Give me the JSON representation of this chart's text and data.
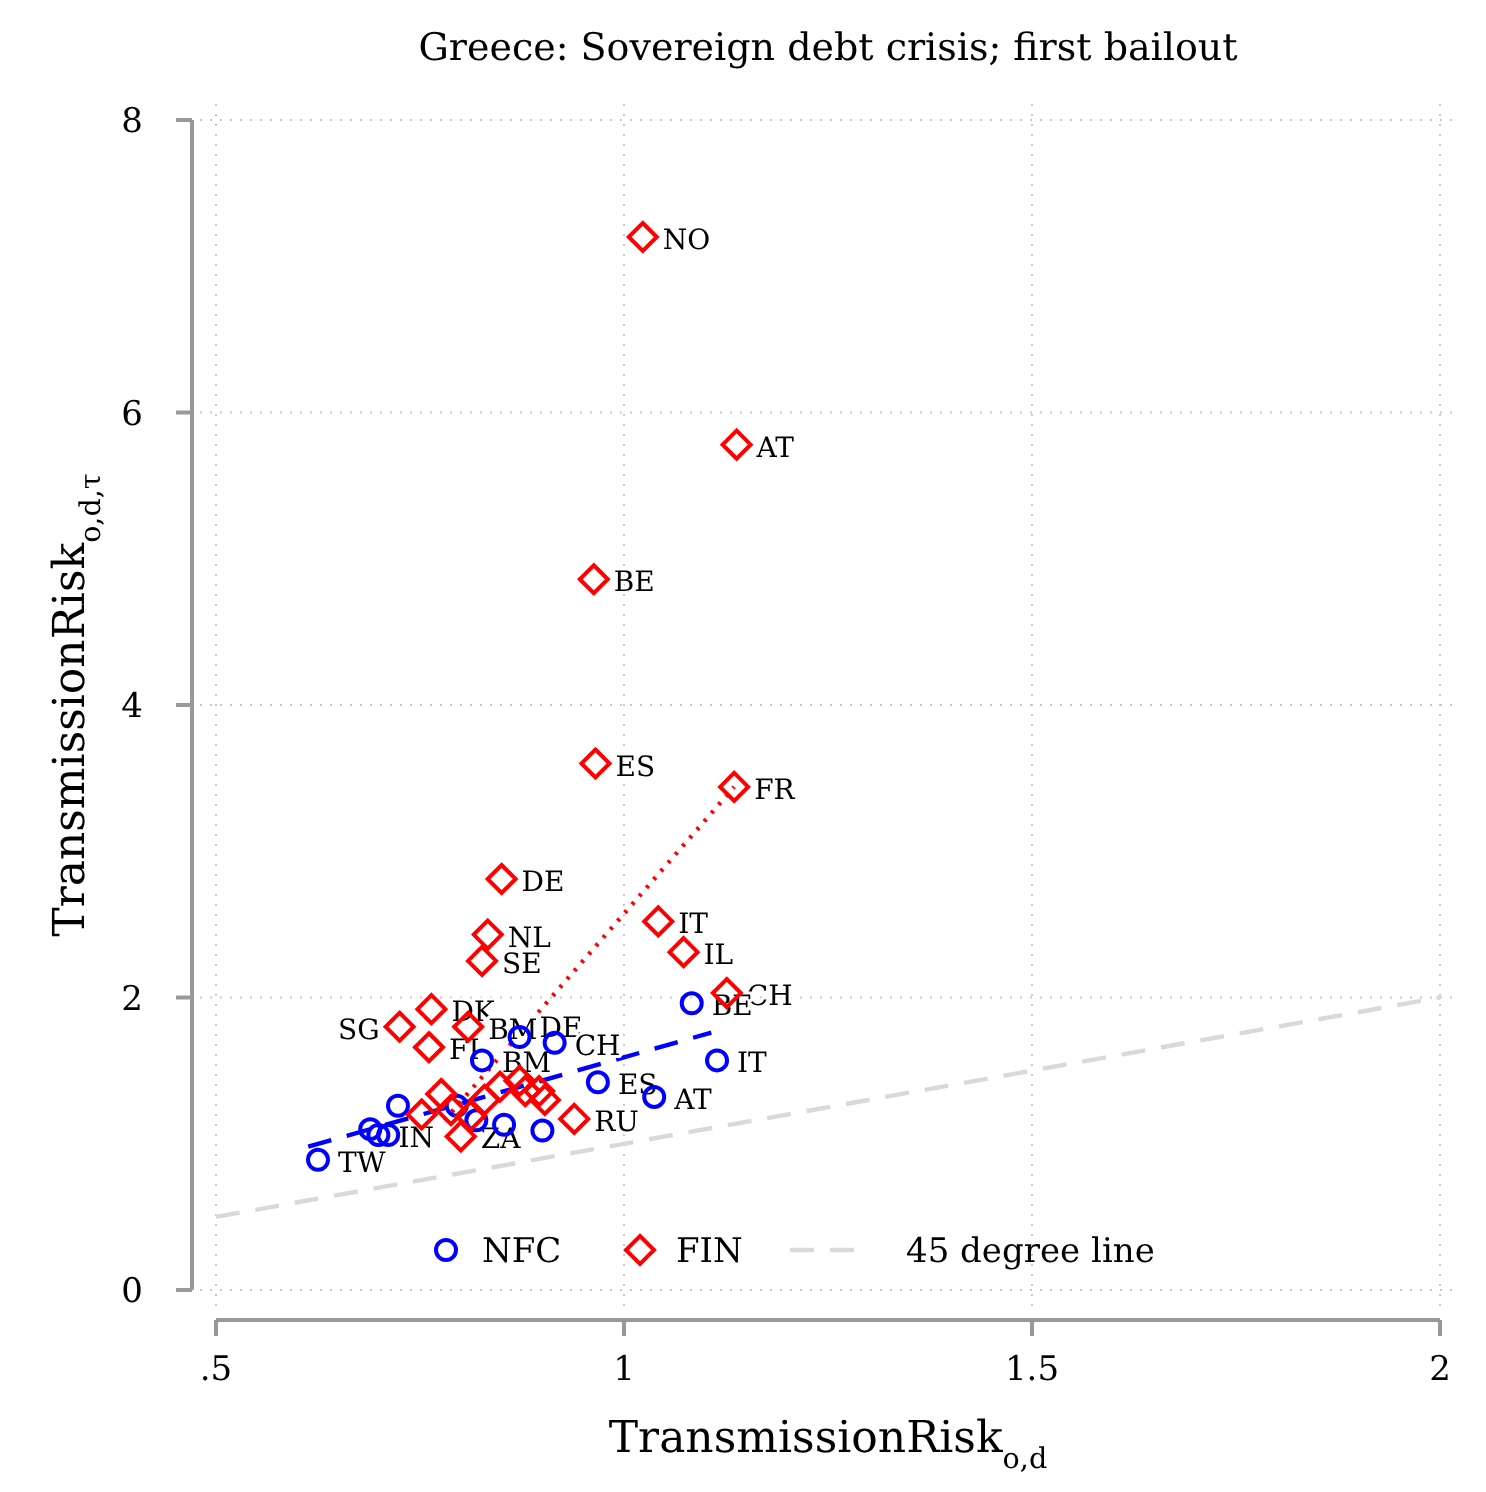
{
  "chart_data": {
    "type": "scatter",
    "title": "Greece: Sovereign debt crisis; first bailout",
    "xlabel": "TransmissionRisk$_{o,d}$",
    "ylabel": "TransmissionRisk$_{o,d,τ}$",
    "xlim": [
      0.5,
      2
    ],
    "ylim": [
      0,
      8
    ],
    "xticks": [
      {
        "value": 0.5,
        "label": ".5"
      },
      1,
      1.5,
      2
    ],
    "yticks": [
      0,
      2,
      4,
      6,
      8
    ],
    "grid": true,
    "legend": "bottom",
    "series": [
      {
        "name": "NFC",
        "marker": "circle",
        "color": "#0000ff",
        "x": [
          0.625,
          1.083,
          1.114,
          1.037,
          0.968,
          0.872,
          0.915,
          0.826,
          0.723,
          0.689,
          0.699,
          0.711,
          0.795,
          0.819,
          0.853,
          0.9
        ],
        "values": [
          0.89,
          1.96,
          1.57,
          1.32,
          1.42,
          1.73,
          1.69,
          1.57,
          1.26,
          1.1,
          1.06,
          1.06,
          1.26,
          1.16,
          1.13,
          1.09
        ]
      },
      {
        "name": "FIN",
        "marker": "diamond",
        "color": "#ff0000",
        "x": [
          1.023,
          1.138,
          0.963,
          0.965,
          1.135,
          0.85,
          1.042,
          0.833,
          1.073,
          0.826,
          1.126,
          0.764,
          0.725,
          0.809,
          0.761,
          0.752,
          0.776,
          0.788,
          0.8,
          0.848,
          0.872,
          0.879,
          0.896,
          0.903,
          0.939,
          0.829,
          0.812
        ],
        "values": [
          7.2,
          5.78,
          4.86,
          3.6,
          3.44,
          2.81,
          2.52,
          2.43,
          2.31,
          2.25,
          2.03,
          1.92,
          1.8,
          1.8,
          1.66,
          1.2,
          1.34,
          1.23,
          1.05,
          1.39,
          1.43,
          1.36,
          1.36,
          1.3,
          1.17,
          1.3,
          1.19
        ]
      },
      {
        "type": "line",
        "line_style": "dashed",
        "color": "#0000ff",
        "x": [
          0.613,
          1.107
        ],
        "values": [
          0.98,
          1.76
        ]
      },
      {
        "type": "line",
        "line_style": "dotted",
        "color": "#ff0000",
        "x": [
          0.78,
          1.135
        ],
        "values": [
          1.16,
          3.44
        ]
      },
      {
        "name": "45 degree line",
        "type": "line",
        "line_style": "dashed",
        "color": "#d9d9d9",
        "x": [
          0.5,
          2
        ],
        "values": [
          0.5,
          2
        ]
      }
    ],
    "annotations": [
      {
        "text": "NO",
        "x": 1.023,
        "y": 7.2
      },
      {
        "text": "AT",
        "x": 1.138,
        "y": 5.78
      },
      {
        "text": "BE",
        "x": 0.963,
        "y": 4.86
      },
      {
        "text": "ES",
        "x": 0.965,
        "y": 3.6
      },
      {
        "text": "FR",
        "x": 1.135,
        "y": 3.44
      },
      {
        "text": "DE",
        "x": 0.85,
        "y": 2.81
      },
      {
        "text": "IT",
        "x": 1.042,
        "y": 2.52
      },
      {
        "text": "NL",
        "x": 0.833,
        "y": 2.43
      },
      {
        "text": "IL",
        "x": 1.073,
        "y": 2.31
      },
      {
        "text": "SE",
        "x": 0.826,
        "y": 2.25
      },
      {
        "text": "CH",
        "x": 1.126,
        "y": 2.03
      },
      {
        "text": "DK",
        "x": 0.764,
        "y": 1.92
      },
      {
        "text": "SG",
        "x": 0.725,
        "y": 1.8
      },
      {
        "text": "BM",
        "x": 0.809,
        "y": 1.8
      },
      {
        "text": "FI",
        "x": 0.761,
        "y": 1.66
      },
      {
        "text": "ZA",
        "x": 0.8,
        "y": 1.05
      },
      {
        "text": "RU",
        "x": 0.939,
        "y": 1.17
      },
      {
        "text": "TW",
        "x": 0.625,
        "y": 0.89
      },
      {
        "text": "BE",
        "x": 1.083,
        "y": 1.96
      },
      {
        "text": "IT",
        "x": 1.114,
        "y": 1.57
      },
      {
        "text": "AT",
        "x": 1.037,
        "y": 1.32
      },
      {
        "text": "ES",
        "x": 0.968,
        "y": 1.42
      },
      {
        "text": "DE",
        "x": 0.872,
        "y": 1.73
      },
      {
        "text": "CH",
        "x": 0.915,
        "y": 1.69
      },
      {
        "text": "BM",
        "x": 0.826,
        "y": 1.57
      },
      {
        "text": "IN",
        "x": 0.699,
        "y": 1.06
      }
    ]
  }
}
